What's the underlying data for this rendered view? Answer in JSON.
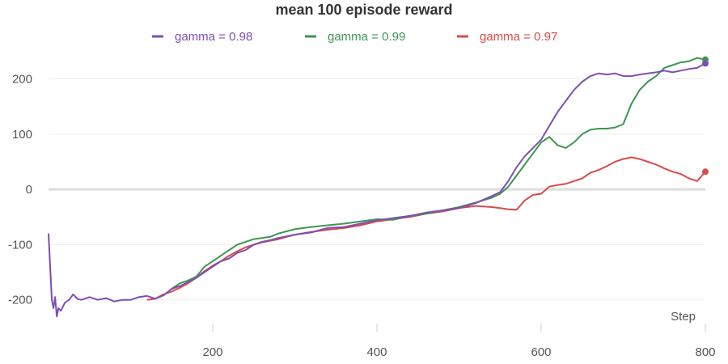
{
  "chart_data": {
    "type": "line",
    "title": "mean 100 episode reward",
    "xlabel": "Step",
    "ylabel": "",
    "xlim": [
      0,
      800
    ],
    "ylim": [
      -240,
      255
    ],
    "xticks": [
      "200",
      "400",
      "600",
      "800"
    ],
    "xtick_values": [
      200,
      400,
      600,
      800
    ],
    "yticks": [
      "200",
      "100",
      "0",
      "-100",
      "-200"
    ],
    "ytick_values": [
      200,
      100,
      0,
      -100,
      -200
    ],
    "grid": "horizontal",
    "legend_position": "top",
    "series": [
      {
        "name": "gamma = 0.98",
        "color": "#7b4fb5",
        "x": [
          0,
          2,
          4,
          6,
          8,
          10,
          12,
          15,
          20,
          25,
          30,
          35,
          40,
          50,
          60,
          70,
          80,
          90,
          100,
          110,
          120,
          130,
          140,
          150,
          160,
          170,
          180,
          190,
          200,
          210,
          220,
          230,
          240,
          250,
          260,
          270,
          280,
          290,
          300,
          320,
          340,
          360,
          380,
          400,
          420,
          440,
          460,
          480,
          500,
          520,
          540,
          550,
          560,
          570,
          580,
          590,
          600,
          610,
          620,
          630,
          640,
          650,
          660,
          670,
          680,
          690,
          700,
          710,
          720,
          730,
          740,
          750,
          760,
          770,
          780,
          790,
          800
        ],
        "y": [
          -80,
          -140,
          -200,
          -215,
          -195,
          -230,
          -215,
          -220,
          -205,
          -200,
          -190,
          -198,
          -200,
          -195,
          -200,
          -197,
          -203,
          -200,
          -200,
          -195,
          -193,
          -198,
          -192,
          -180,
          -175,
          -168,
          -160,
          -150,
          -140,
          -130,
          -125,
          -115,
          -110,
          -100,
          -95,
          -92,
          -88,
          -85,
          -82,
          -78,
          -70,
          -68,
          -62,
          -56,
          -52,
          -48,
          -42,
          -38,
          -34,
          -25,
          -12,
          -5,
          15,
          40,
          60,
          75,
          90,
          115,
          140,
          160,
          180,
          195,
          205,
          210,
          208,
          210,
          205,
          205,
          208,
          210,
          212,
          215,
          212,
          215,
          218,
          220,
          228
        ]
      },
      {
        "name": "gamma = 0.99",
        "color": "#3e9651",
        "x": [
          150,
          160,
          170,
          180,
          190,
          200,
          210,
          220,
          230,
          240,
          250,
          260,
          270,
          280,
          290,
          300,
          320,
          340,
          360,
          380,
          400,
          420,
          440,
          460,
          480,
          500,
          520,
          540,
          550,
          560,
          570,
          580,
          590,
          600,
          610,
          620,
          630,
          640,
          650,
          660,
          670,
          680,
          690,
          700,
          710,
          720,
          730,
          740,
          750,
          760,
          770,
          780,
          790,
          800
        ],
        "y": [
          -180,
          -170,
          -165,
          -158,
          -140,
          -130,
          -120,
          -110,
          -100,
          -95,
          -90,
          -88,
          -86,
          -80,
          -76,
          -72,
          -68,
          -65,
          -62,
          -58,
          -54,
          -55,
          -48,
          -44,
          -38,
          -32,
          -24,
          -15,
          -8,
          5,
          25,
          45,
          65,
          85,
          95,
          80,
          75,
          85,
          100,
          108,
          110,
          110,
          112,
          118,
          155,
          180,
          195,
          205,
          220,
          225,
          230,
          232,
          238,
          235
        ]
      },
      {
        "name": "gamma = 0.97",
        "color": "#d94a4a",
        "x": [
          120,
          130,
          140,
          150,
          160,
          170,
          180,
          190,
          200,
          210,
          220,
          230,
          240,
          250,
          260,
          270,
          280,
          290,
          300,
          320,
          340,
          360,
          380,
          400,
          420,
          440,
          460,
          480,
          500,
          520,
          540,
          550,
          560,
          570,
          580,
          590,
          600,
          610,
          620,
          630,
          640,
          650,
          660,
          670,
          680,
          690,
          700,
          710,
          720,
          730,
          740,
          750,
          760,
          770,
          780,
          790,
          800
        ],
        "y": [
          -200,
          -198,
          -190,
          -185,
          -178,
          -170,
          -160,
          -148,
          -138,
          -130,
          -120,
          -112,
          -105,
          -100,
          -96,
          -93,
          -90,
          -86,
          -82,
          -77,
          -73,
          -70,
          -65,
          -58,
          -54,
          -50,
          -44,
          -40,
          -34,
          -30,
          -32,
          -34,
          -36,
          -37,
          -20,
          -10,
          -8,
          5,
          8,
          10,
          15,
          20,
          30,
          35,
          42,
          50,
          55,
          58,
          55,
          50,
          45,
          38,
          32,
          28,
          20,
          15,
          32
        ]
      }
    ]
  }
}
